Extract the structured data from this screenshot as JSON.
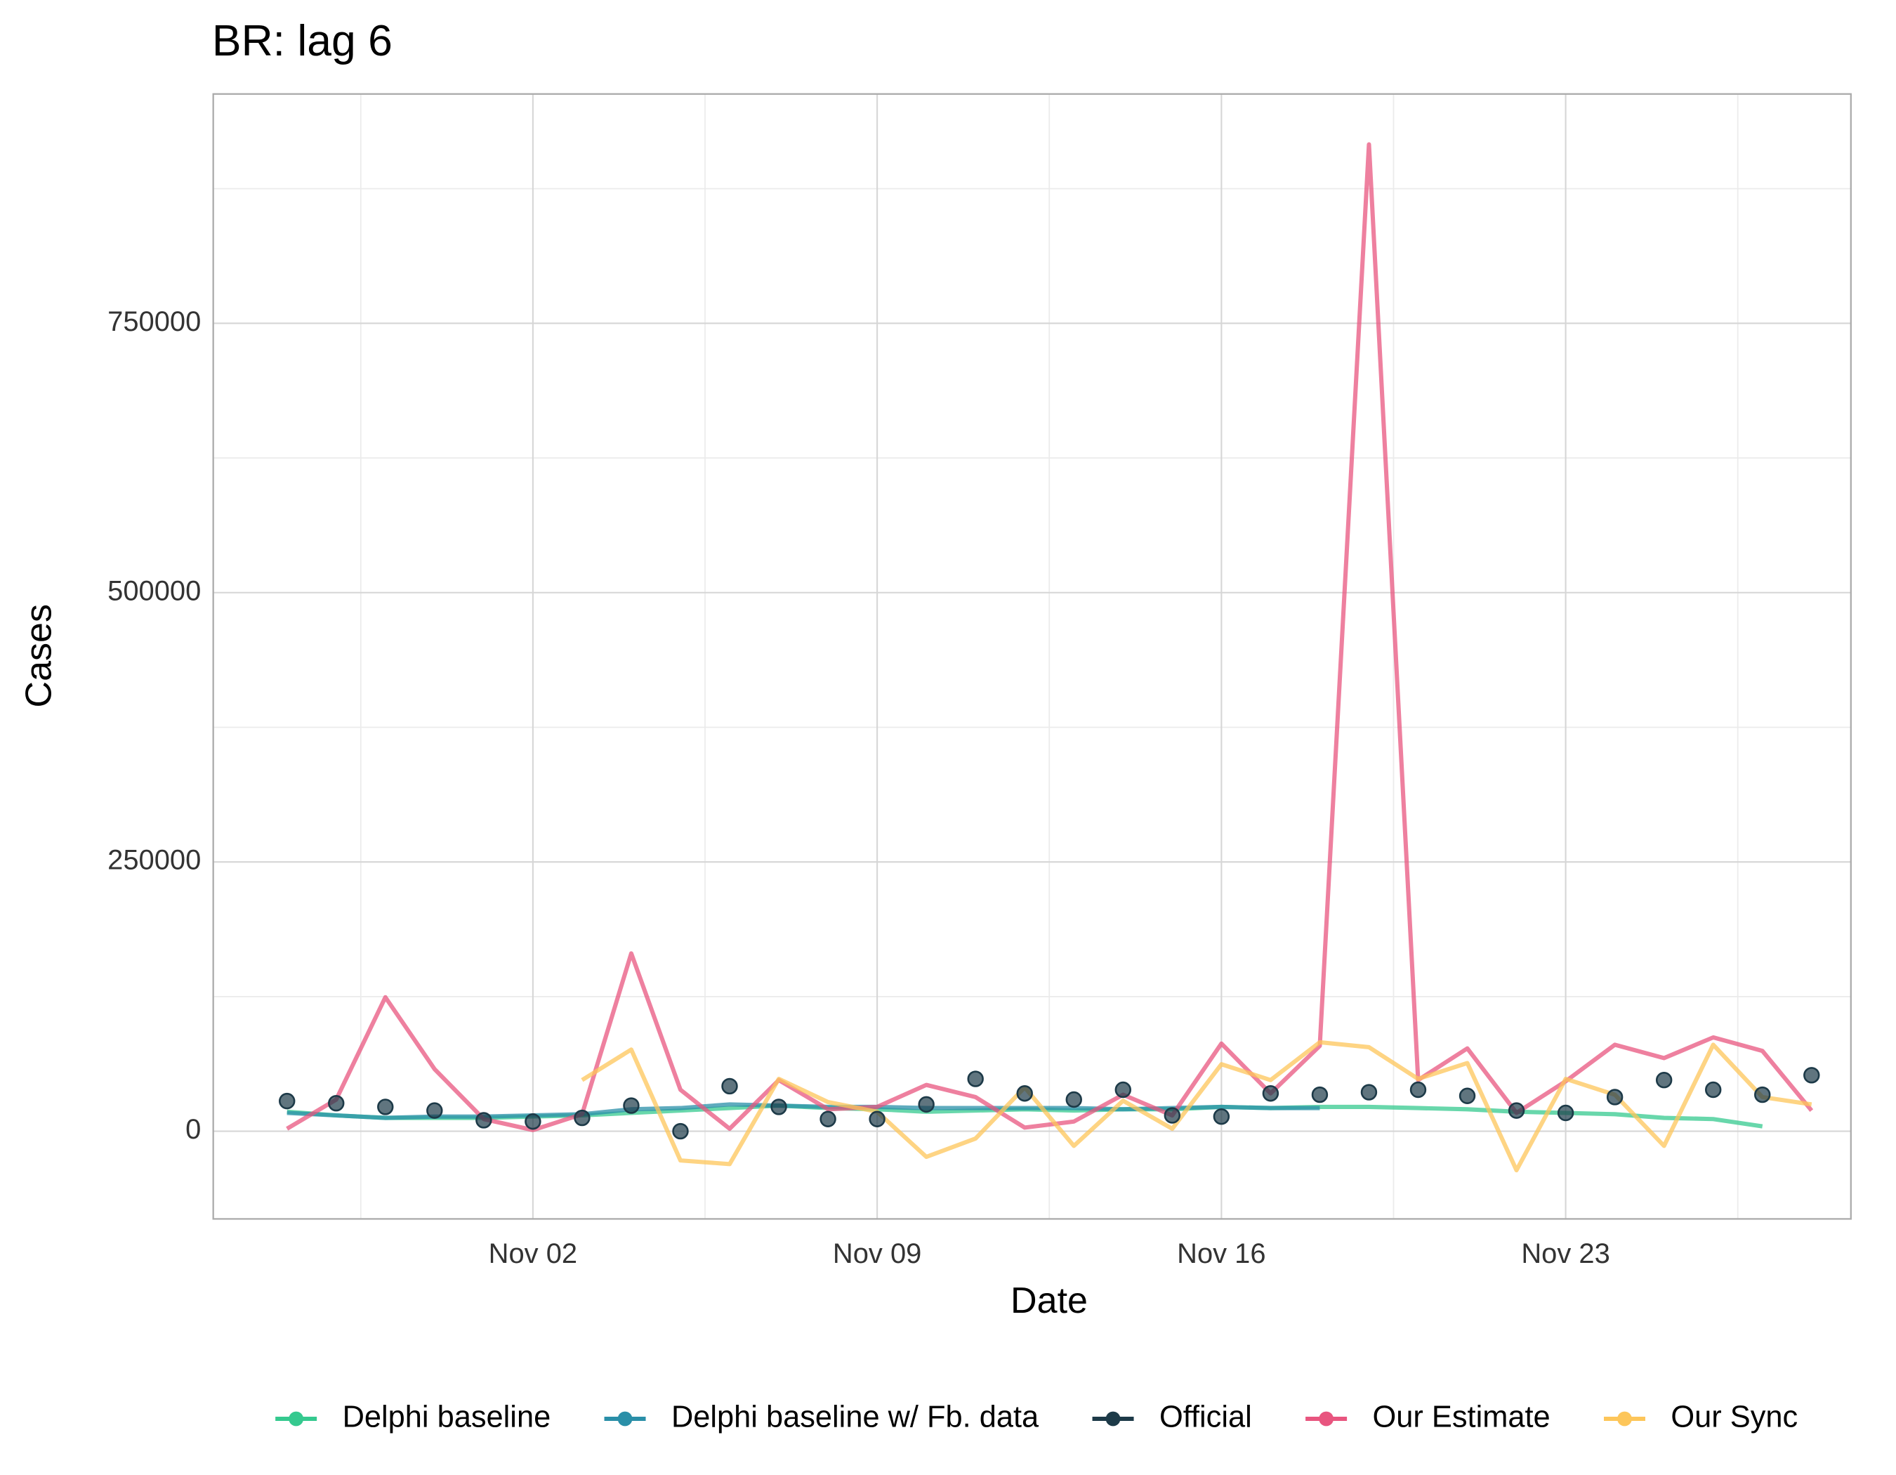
{
  "chart_data": {
    "type": "line",
    "title": "BR: lag 6",
    "xlabel": "Date",
    "ylabel": "Cases",
    "categories": [
      "Oct 28",
      "Oct 29",
      "Oct 30",
      "Oct 31",
      "Nov 01",
      "Nov 02",
      "Nov 03",
      "Nov 04",
      "Nov 05",
      "Nov 06",
      "Nov 07",
      "Nov 08",
      "Nov 09",
      "Nov 10",
      "Nov 11",
      "Nov 12",
      "Nov 13",
      "Nov 14",
      "Nov 15",
      "Nov 16",
      "Nov 17",
      "Nov 18",
      "Nov 19",
      "Nov 20",
      "Nov 21",
      "Nov 22",
      "Nov 23",
      "Nov 24",
      "Nov 25",
      "Nov 26",
      "Nov 27",
      "Nov 28"
    ],
    "xticks": [
      "Nov 02",
      "Nov 09",
      "Nov 16",
      "Nov 23"
    ],
    "ylim": [
      -81400,
      962900
    ],
    "yticks": [
      0,
      250000,
      500000,
      750000
    ],
    "grid": true,
    "legend": "bottom",
    "series": [
      {
        "name": "Delphi baseline",
        "color": "#35c98f",
        "marker": "line",
        "values": [
          18100,
          14700,
          12400,
          12400,
          12400,
          13600,
          14700,
          17000,
          19200,
          21500,
          23800,
          21500,
          20400,
          18100,
          19200,
          20400,
          19200,
          20400,
          20400,
          22600,
          21500,
          22600,
          22600,
          21500,
          20400,
          18100,
          17000,
          15800,
          12400,
          11300,
          4500,
          null
        ]
      },
      {
        "name": "Delphi baseline w/ Fb. data",
        "color": "#2a8fa8",
        "marker": "line",
        "values": [
          17000,
          14700,
          12400,
          13600,
          13600,
          14700,
          15800,
          20400,
          21500,
          24900,
          23800,
          22600,
          22600,
          21500,
          21500,
          21500,
          21500,
          20400,
          21500,
          22600,
          21500,
          21500,
          null,
          null,
          null,
          null,
          null,
          null,
          null,
          null,
          null,
          null
        ]
      },
      {
        "name": "Official",
        "color": "#1d3a48",
        "marker": "point",
        "values": [
          28000,
          26000,
          22600,
          19200,
          10200,
          9000,
          12400,
          23800,
          0,
          41800,
          22600,
          11300,
          11300,
          24900,
          48600,
          35100,
          29400,
          38500,
          14700,
          13600,
          35100,
          33900,
          36200,
          38500,
          32800,
          19200,
          17000,
          31700,
          47500,
          38500,
          33900,
          52000
        ]
      },
      {
        "name": "Our Estimate",
        "color": "#e8557f",
        "marker": "line",
        "values": [
          2300,
          29400,
          124400,
          57700,
          11300,
          1100,
          15800,
          165100,
          38500,
          2300,
          47500,
          20400,
          22600,
          43000,
          31700,
          3400,
          9000,
          33900,
          14700,
          81400,
          35100,
          79200,
          916100,
          47500,
          76900,
          17000,
          46400,
          80300,
          67900,
          87100,
          74600,
          19200
        ]
      },
      {
        "name": "Our Sync",
        "color": "#fdc65a",
        "marker": "line",
        "values": [
          null,
          null,
          null,
          null,
          null,
          null,
          47500,
          75800,
          -27100,
          -30500,
          48600,
          27100,
          18100,
          -23800,
          -6800,
          40700,
          -13600,
          28300,
          2300,
          62200,
          47500,
          82600,
          78000,
          48600,
          63300,
          -36200,
          48600,
          33900,
          -13600,
          80300,
          31700,
          24900
        ]
      }
    ]
  }
}
